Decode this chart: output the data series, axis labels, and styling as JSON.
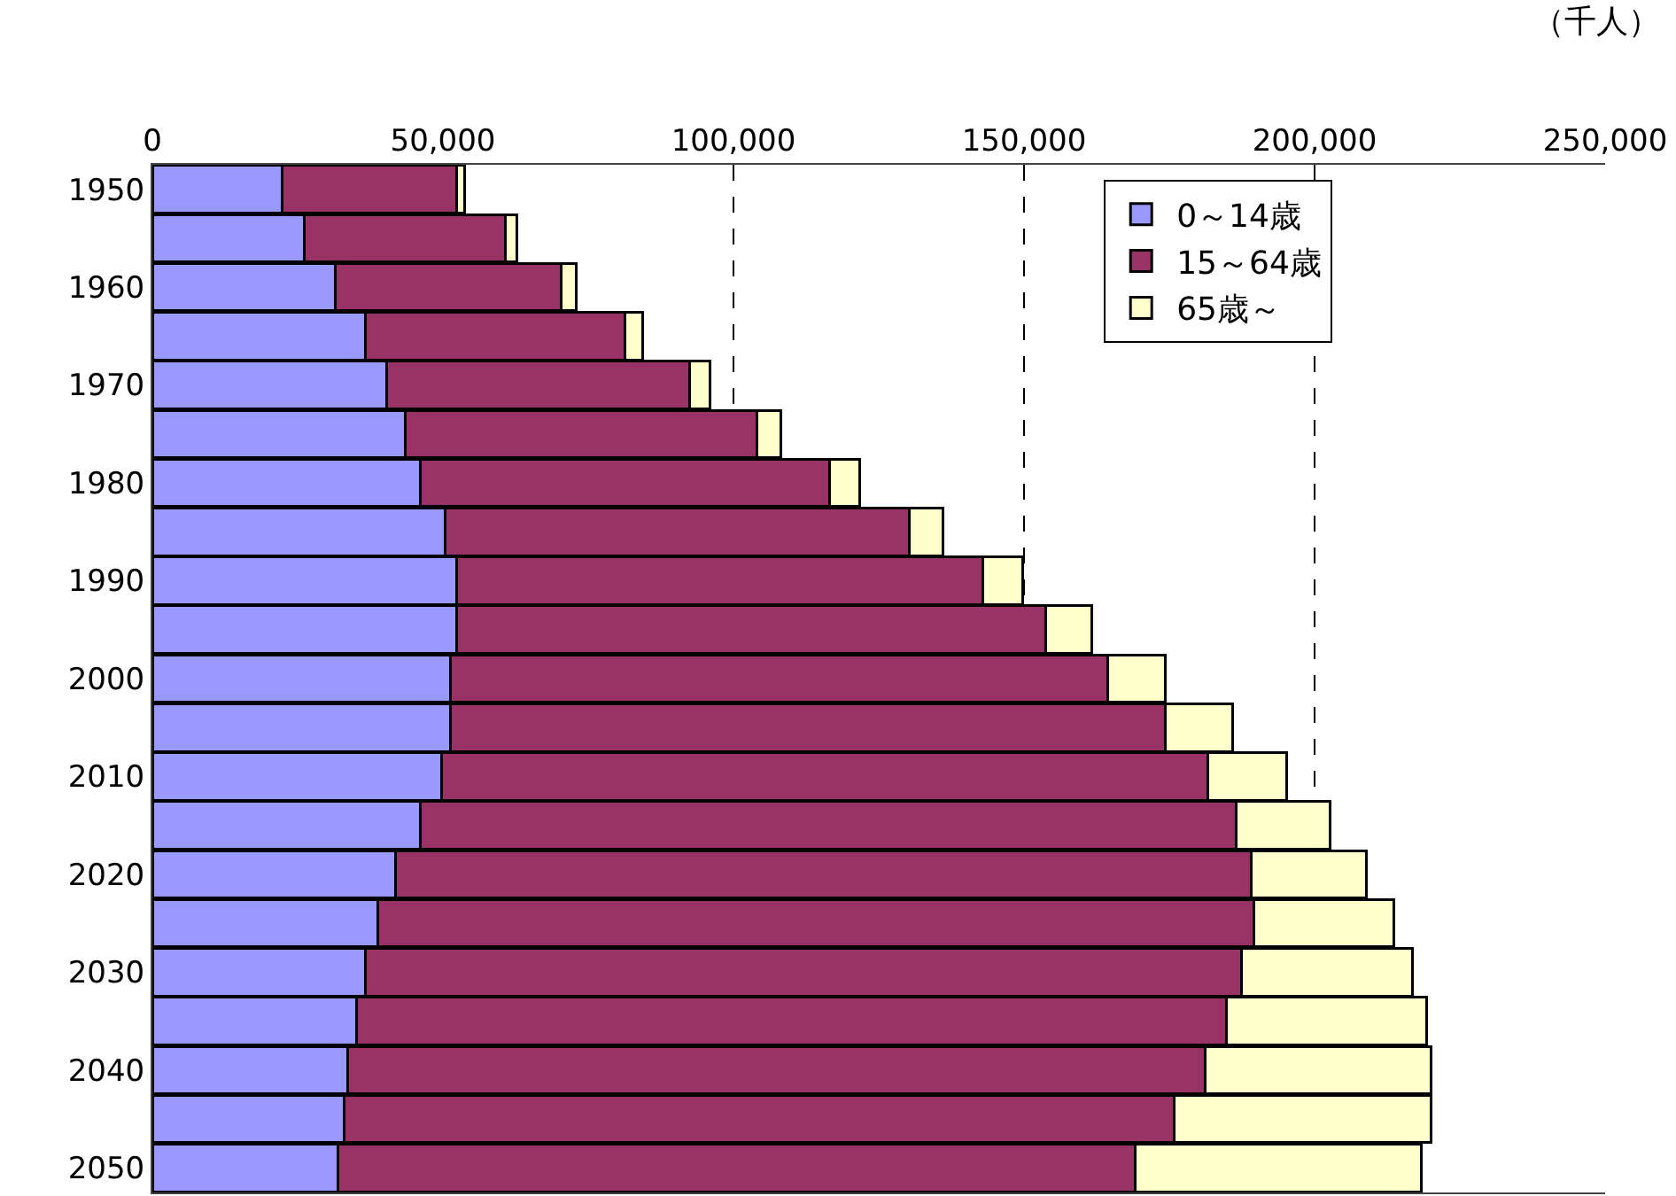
{
  "chart_data": {
    "type": "bar",
    "orientation": "horizontal",
    "stacked": true,
    "xlabel": "（千人）",
    "categories": [
      "1950",
      null,
      "1960",
      null,
      "1970",
      null,
      "1980",
      null,
      "1990",
      null,
      "2000",
      null,
      "2010",
      null,
      "2020",
      null,
      "2030",
      null,
      "2040",
      null,
      "2050"
    ],
    "series": [
      {
        "name": "0～14歳",
        "color": "#9999ff",
        "values": [
          22400,
          26200,
          31500,
          36700,
          40300,
          43500,
          46100,
          50400,
          52400,
          52400,
          51300,
          51300,
          49800,
          46100,
          41900,
          38800,
          36700,
          35200,
          33600,
          33000,
          31900
        ]
      },
      {
        "name": "15～64歳",
        "color": "#993366",
        "values": [
          30000,
          34600,
          38800,
          44700,
          52200,
          60500,
          70400,
          79900,
          90500,
          101400,
          113100,
          123000,
          131800,
          140400,
          147200,
          150800,
          150700,
          149700,
          147600,
          142900,
          137200
        ]
      },
      {
        "name": "65歳～",
        "color": "#ffffcc",
        "values": [
          1300,
          2000,
          2700,
          3000,
          3400,
          4100,
          5200,
          5700,
          6800,
          7800,
          9900,
          11600,
          13600,
          16200,
          19800,
          24100,
          29400,
          34400,
          38800,
          44100,
          49300
        ]
      }
    ],
    "xlim": [
      0,
      250000
    ],
    "xticks": [
      0,
      {
        "value": 50000,
        "label": "50,000"
      },
      {
        "value": 100000,
        "label": "100,000"
      },
      {
        "value": 150000,
        "label": "150,000"
      },
      {
        "value": 200000,
        "label": "200,000"
      },
      {
        "value": 250000,
        "label": "250,000"
      }
    ],
    "grid": "x",
    "legend": "top right"
  }
}
